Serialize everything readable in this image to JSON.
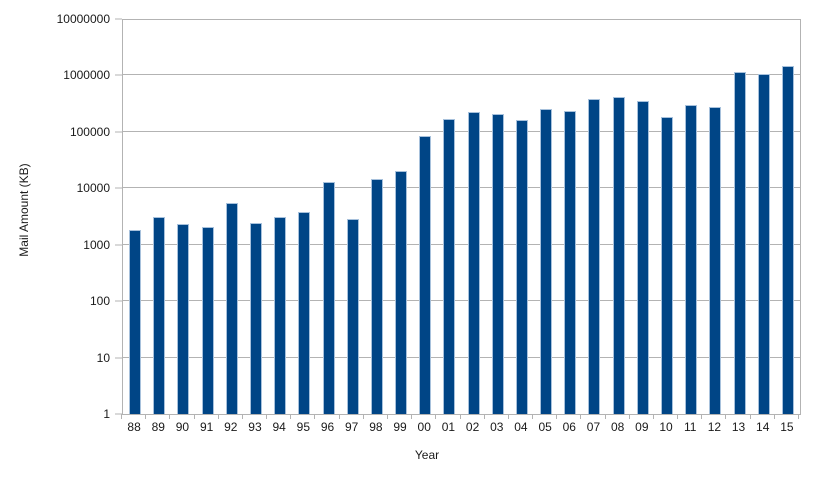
{
  "chart_data": {
    "type": "bar",
    "title": "",
    "xlabel": "Year",
    "ylabel": "Mail Amount (KB)",
    "y_scale": "log",
    "ylim": [
      1,
      10000000
    ],
    "y_decades": 7,
    "y_ticks": [
      "1",
      "10",
      "100",
      "1000",
      "10000",
      "100000",
      "1000000",
      "10000000"
    ],
    "categories": [
      "88",
      "89",
      "90",
      "91",
      "92",
      "93",
      "94",
      "95",
      "96",
      "97",
      "98",
      "99",
      "00",
      "01",
      "02",
      "03",
      "04",
      "05",
      "06",
      "07",
      "08",
      "09",
      "10",
      "11",
      "12",
      "13",
      "14",
      "15"
    ],
    "values": [
      1800,
      3100,
      2350,
      2050,
      5500,
      2400,
      3100,
      3750,
      13000,
      2800,
      14500,
      20000,
      85000,
      170000,
      225000,
      205000,
      165000,
      250000,
      230000,
      390000,
      420000,
      350000,
      185000,
      300000,
      280000,
      1150000,
      1050000,
      1500000
    ],
    "legend": "none",
    "grid": "horizontal-log-decades",
    "colors": {
      "bar_fill": "#004586",
      "bar_edge": "#a7c1dc",
      "gridline": "#b3b3b3",
      "axis": "#b3b3b3",
      "text": "#1a1a1a",
      "background": "#ffffff"
    }
  }
}
